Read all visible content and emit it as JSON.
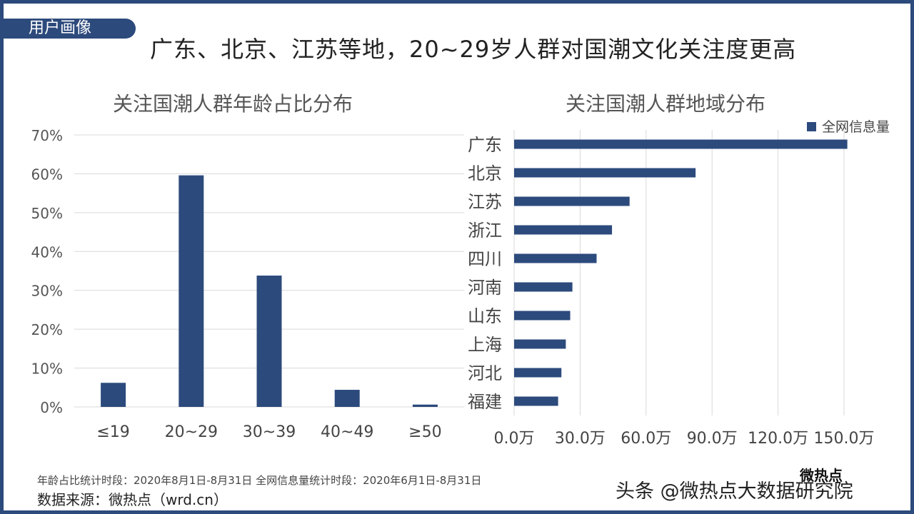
{
  "tag": "用户画像",
  "headline": "广东、北京、江苏等地，20~29岁人群对国潮文化关注度更高",
  "footer": {
    "note": "年龄占比统计时段：2020年8月1日-8月31日   全网信息量统计时段：2020年6月1日-8月31日",
    "source": "数据来源：微热点（wrd.cn）",
    "watermark": "头条 @微热点大数据研究院",
    "logo": "微热点"
  },
  "colors": {
    "bar": "#2c4a7c",
    "frame": "#2c4a7c",
    "grid": "#d9d9d9"
  },
  "chart_data": [
    {
      "type": "bar",
      "title": "关注国潮人群年龄占比分布",
      "categories": [
        "≤19",
        "20~29",
        "30~39",
        "40~49",
        "≥50"
      ],
      "values": [
        6.2,
        59.6,
        33.8,
        4.4,
        0.6
      ],
      "yticks": [
        "0%",
        "10%",
        "20%",
        "30%",
        "40%",
        "50%",
        "60%",
        "70%"
      ],
      "ylim": [
        0,
        70
      ],
      "grid": true
    },
    {
      "type": "bar",
      "orientation": "horizontal",
      "title": "关注国潮人群地域分布",
      "categories": [
        "广东",
        "北京",
        "江苏",
        "浙江",
        "四川",
        "河南",
        "山东",
        "上海",
        "河北",
        "福建"
      ],
      "series": [
        {
          "name": "全网信息量",
          "values": [
            151.5,
            82.5,
            52.5,
            44.5,
            37.5,
            26.5,
            25.5,
            23.5,
            21.5,
            20.0
          ]
        }
      ],
      "xticks": [
        "0.0万",
        "30.0万",
        "60.0万",
        "90.0万",
        "120.0万",
        "150.0万"
      ],
      "xlim": [
        0,
        150
      ],
      "legend": "top-right",
      "grid": true
    }
  ]
}
